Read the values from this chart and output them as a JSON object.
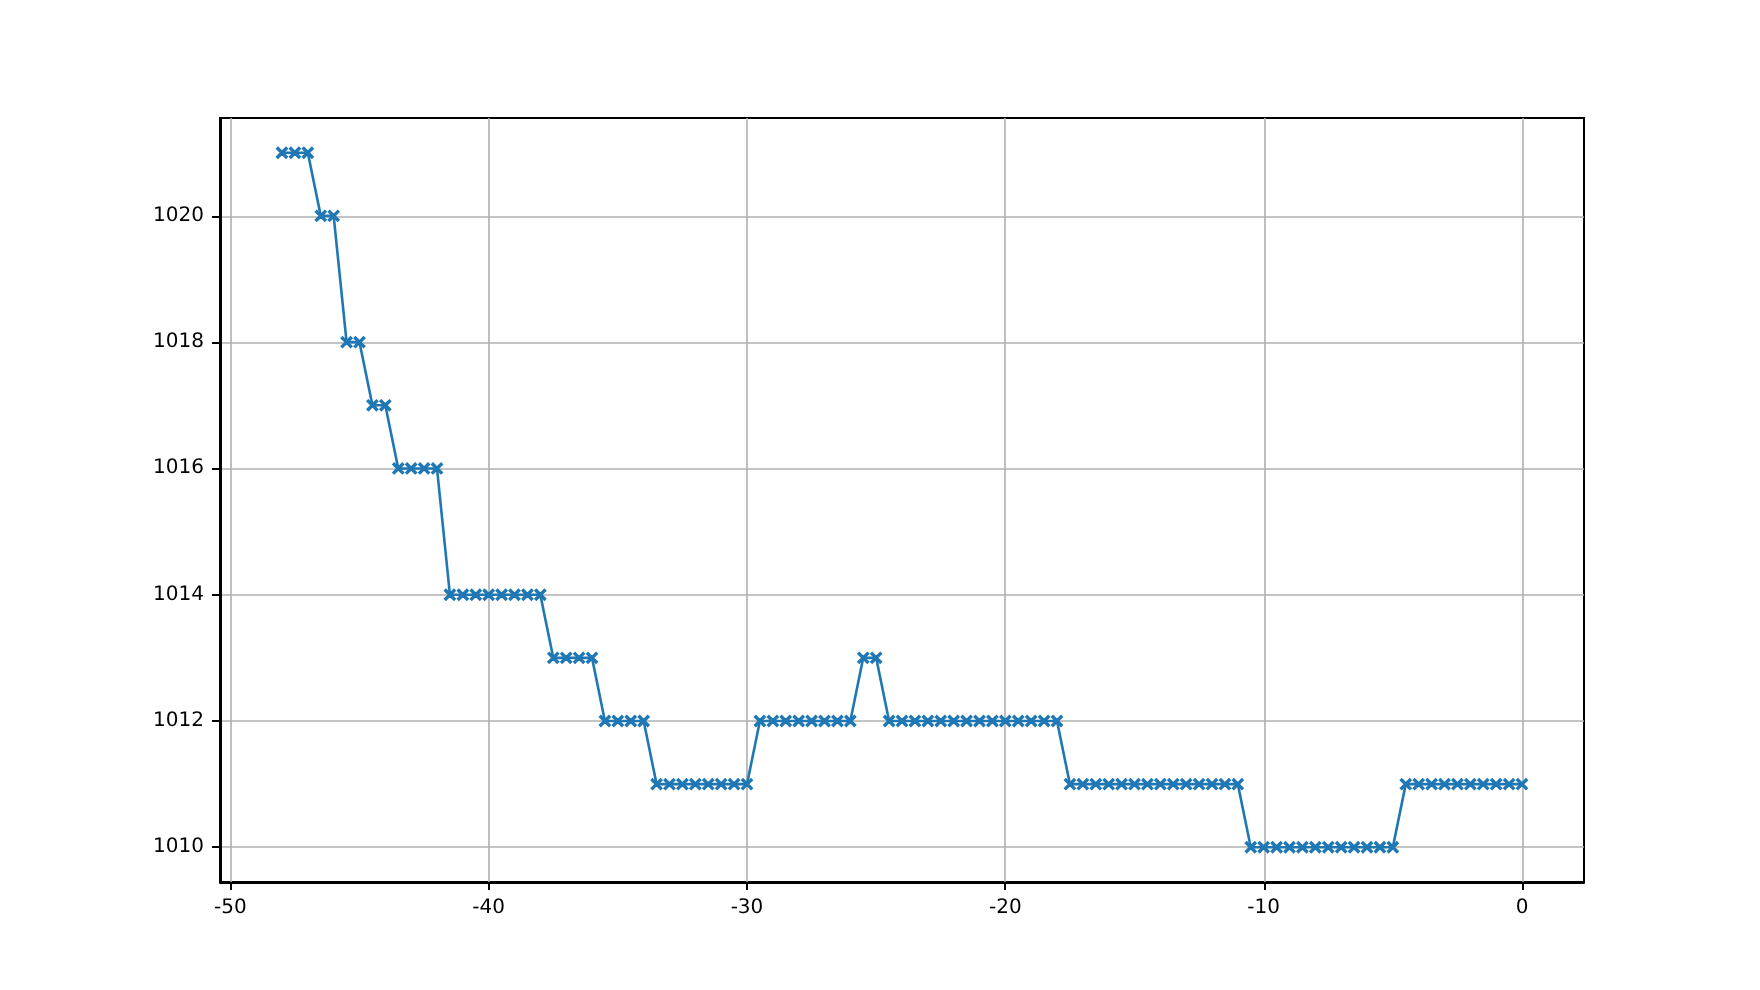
{
  "chart_data": {
    "type": "line",
    "x": [
      -48,
      -47.5,
      -47,
      -46.5,
      -46,
      -45.5,
      -45,
      -44.5,
      -44,
      -43.5,
      -43,
      -42.5,
      -42,
      -41.5,
      -41,
      -40.5,
      -40,
      -39.5,
      -39,
      -38.5,
      -38,
      -37.5,
      -37,
      -36.5,
      -36,
      -35.5,
      -35,
      -34.5,
      -34,
      -33.5,
      -33,
      -32.5,
      -32,
      -31.5,
      -31,
      -30.5,
      -30,
      -29.5,
      -29,
      -28.5,
      -28,
      -27.5,
      -27,
      -26.5,
      -26,
      -25.5,
      -25,
      -24.5,
      -24,
      -23.5,
      -23,
      -22.5,
      -22,
      -21.5,
      -21,
      -20.5,
      -20,
      -19.5,
      -19,
      -18.5,
      -18,
      -17.5,
      -17,
      -16.5,
      -16,
      -15.5,
      -15,
      -14.5,
      -14,
      -13.5,
      -13,
      -12.5,
      -12,
      -11.5,
      -11,
      -10.5,
      -10,
      -9.5,
      -9,
      -8.5,
      -8,
      -7.5,
      -7,
      -6.5,
      -6,
      -5.5,
      -5,
      -4.5,
      -4,
      -3.5,
      -3,
      -2.5,
      -2,
      -1.5,
      -1,
      -0.5,
      0
    ],
    "series": [
      {
        "color": "#1f77b4",
        "values": [
          1021,
          1021,
          1021,
          1020,
          1020,
          1018,
          1018,
          1017,
          1017,
          1016,
          1016,
          1016,
          1016,
          1014,
          1014,
          1014,
          1014,
          1014,
          1014,
          1014,
          1014,
          1013,
          1013,
          1013,
          1013,
          1012,
          1012,
          1012,
          1012,
          1011,
          1011,
          1011,
          1011,
          1011,
          1011,
          1011,
          1011,
          1012,
          1012,
          1012,
          1012,
          1012,
          1012,
          1012,
          1012,
          1013,
          1013,
          1012,
          1012,
          1012,
          1012,
          1012,
          1012,
          1012,
          1012,
          1012,
          1012,
          1012,
          1012,
          1012,
          1012,
          1011,
          1011,
          1011,
          1011,
          1011,
          1011,
          1011,
          1011,
          1011,
          1011,
          1011,
          1011,
          1011,
          1011,
          1010,
          1010,
          1010,
          1010,
          1010,
          1010,
          1010,
          1010,
          1010,
          1010,
          1010,
          1010,
          1011,
          1011,
          1011,
          1011,
          1011,
          1011,
          1011,
          1011,
          1011,
          1011
        ]
      }
    ],
    "xlim": [
      -50.4,
      2.4
    ],
    "xticks": [
      -50,
      -40,
      -30,
      -20,
      -10,
      0
    ],
    "ylim": [
      1009.45,
      1021.55
    ],
    "yticks": [
      1010,
      1012,
      1014,
      1016,
      1018,
      1020
    ],
    "grid": true,
    "marker": "cross",
    "line_style": "solid"
  }
}
